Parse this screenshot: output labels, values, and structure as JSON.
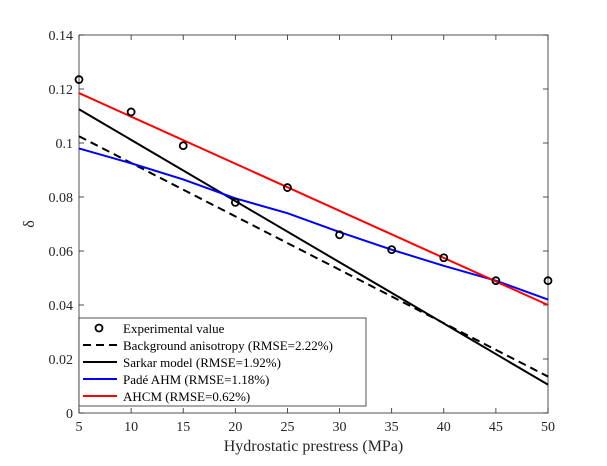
{
  "chart_data": {
    "type": "line",
    "title": "",
    "xlabel": "Hydrostatic prestress (MPa)",
    "ylabel": "δ",
    "xlim": [
      5,
      50
    ],
    "ylim": [
      0,
      0.14
    ],
    "xticks": [
      5,
      10,
      15,
      20,
      25,
      30,
      35,
      40,
      45,
      50
    ],
    "yticks": [
      0,
      0.02,
      0.04,
      0.06,
      0.08,
      0.1,
      0.12,
      0.14
    ],
    "ytick_labels": [
      "0",
      "0.02",
      "0.04",
      "0.06",
      "0.08",
      "0.1",
      "0.12",
      "0.14"
    ],
    "grid": false,
    "legend_placement": "bottom-left",
    "series": [
      {
        "name": "Experimental value",
        "style": "markers",
        "color": "#000000",
        "x": [
          5,
          10,
          15,
          20,
          25,
          30,
          35,
          40,
          45,
          50
        ],
        "y": [
          0.1235,
          0.1115,
          0.099,
          0.078,
          0.0835,
          0.066,
          0.0605,
          0.0575,
          0.049,
          0.049
        ]
      },
      {
        "name": "Background anisotropy (RMSE=2.22%)",
        "style": "dashed",
        "color": "#000000",
        "x": [
          5,
          50
        ],
        "y": [
          0.1025,
          0.0135
        ]
      },
      {
        "name": "Sarkar model (RMSE=1.92%)",
        "style": "solid",
        "color": "#000000",
        "x": [
          5,
          50
        ],
        "y": [
          0.1125,
          0.0105
        ]
      },
      {
        "name": "Padé AHM (RMSE=1.18%)",
        "style": "solid",
        "color": "#0000ff",
        "x": [
          5,
          10,
          15,
          20,
          25,
          30,
          35,
          40,
          45,
          50
        ],
        "y": [
          0.098,
          0.0925,
          0.0865,
          0.0795,
          0.074,
          0.067,
          0.0605,
          0.0545,
          0.049,
          0.042
        ]
      },
      {
        "name": "AHCM (RMSE=0.62%)",
        "style": "solid",
        "color": "#ff0000",
        "x": [
          5,
          50
        ],
        "y": [
          0.1185,
          0.04
        ]
      }
    ]
  }
}
